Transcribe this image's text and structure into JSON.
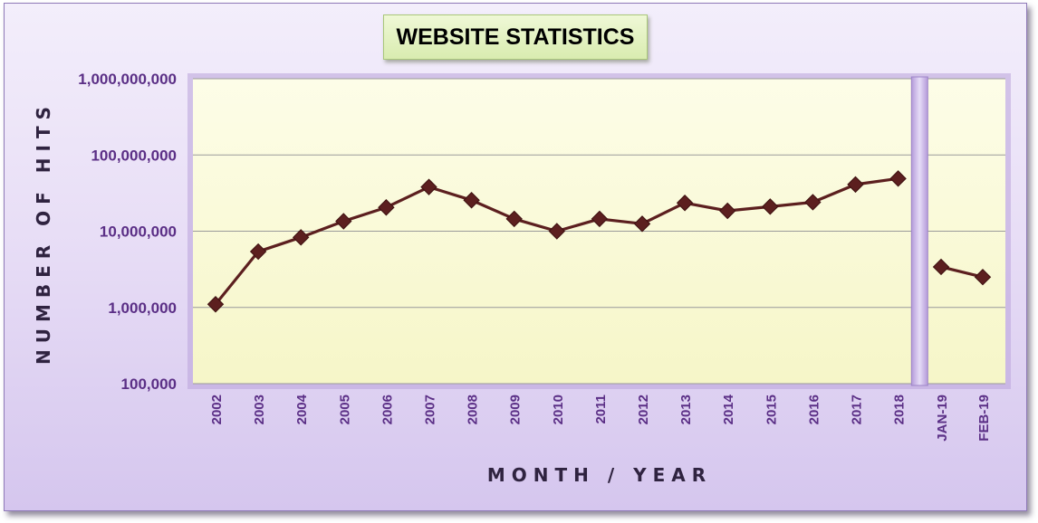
{
  "chart_data": {
    "type": "line",
    "title": "WEBSITE STATISTICS",
    "xlabel": "MONTH / YEAR",
    "ylabel": "NUMBER OF HITS",
    "y_scale": "log",
    "ylim": [
      100000,
      1000000000
    ],
    "y_ticks": [
      {
        "value": 100000,
        "label": "100,000"
      },
      {
        "value": 1000000,
        "label": "1,000,000"
      },
      {
        "value": 10000000,
        "label": "10,000,000"
      },
      {
        "value": 100000000,
        "label": "100,000,000"
      },
      {
        "value": 1000000000,
        "label": "1,000,000,000"
      }
    ],
    "grid": true,
    "legend": "none",
    "categories": [
      "2002",
      "2003",
      "2004",
      "2005",
      "2006",
      "2007",
      "2008",
      "2009",
      "2010",
      "2011",
      "2012",
      "2013",
      "2014",
      "2015",
      "2016",
      "2017",
      "2018",
      "JAN-19",
      "FEB-19"
    ],
    "series": [
      {
        "segments": [
          {
            "categories": [
              "2002",
              "2003",
              "2004",
              "2005",
              "2006",
              "2007",
              "2008",
              "2009",
              "2010",
              "2011",
              "2012",
              "2013",
              "2014",
              "2015",
              "2016",
              "2017",
              "2018"
            ],
            "values": [
              1100000,
              5400000,
              8300000,
              13500000,
              20500000,
              38000000,
              25500000,
              14500000,
              10000000,
              14500000,
              12500000,
              23500000,
              18500000,
              21000000,
              24000000,
              41000000,
              49000000
            ]
          },
          {
            "categories": [
              "JAN-19",
              "FEB-19"
            ],
            "values": [
              3400000,
              2500000
            ]
          }
        ]
      }
    ],
    "colors": {
      "line": "#5c1f1f",
      "marker": "#5c1f1f",
      "plot_background": "#fbfbd8",
      "separator": "#c9b6ea",
      "tick_label": "#5b2f86",
      "gridline": "#9a9a9a"
    }
  }
}
